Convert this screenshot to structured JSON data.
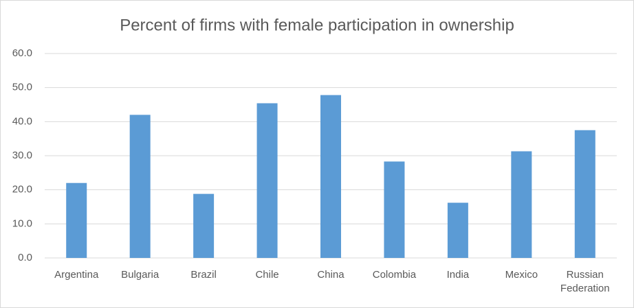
{
  "chart_data": {
    "type": "bar",
    "title": "Percent of firms with female participation in ownership",
    "categories": [
      "Argentina",
      "Bulgaria",
      "Brazil",
      "Chile",
      "China",
      "Colombia",
      "India",
      "Mexico",
      "Russian Federation"
    ],
    "values": [
      22.0,
      42.0,
      18.8,
      45.4,
      47.8,
      28.3,
      16.2,
      31.3,
      37.5
    ],
    "color": "#5b9bd5",
    "ylim": [
      0,
      60
    ],
    "yticks": [
      {
        "value": 0,
        "label": "0.0"
      },
      {
        "value": 10,
        "label": "10.0"
      },
      {
        "value": 20,
        "label": "20.0"
      },
      {
        "value": 30,
        "label": "30.0"
      },
      {
        "value": 40,
        "label": "40.0"
      },
      {
        "value": 50,
        "label": "50.0"
      },
      {
        "value": 60,
        "label": "60.0"
      }
    ],
    "grid": true
  }
}
